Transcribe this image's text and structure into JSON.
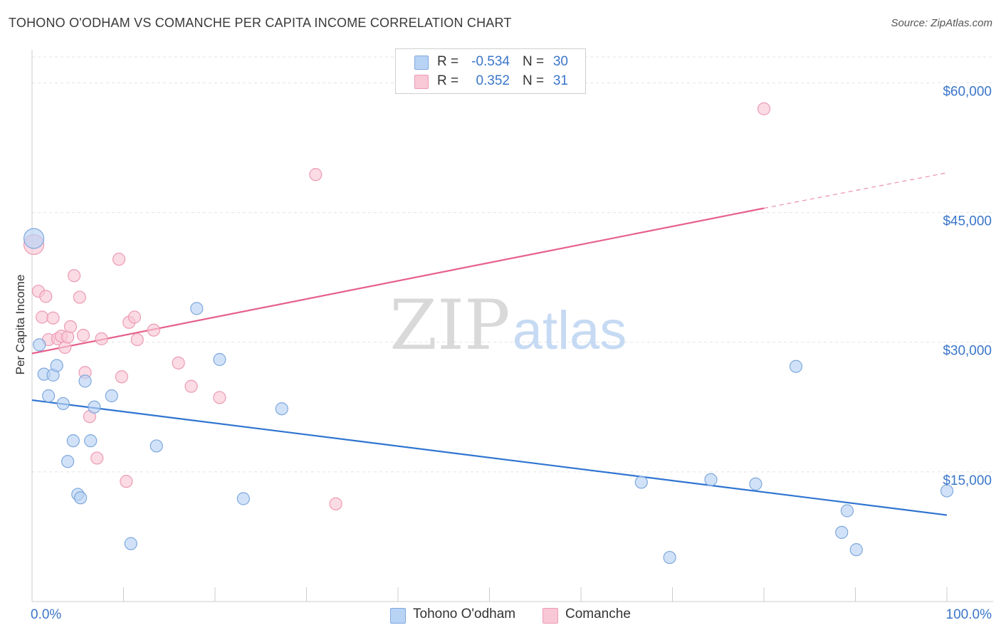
{
  "header": {
    "title": "TOHONO O'ODHAM VS COMANCHE PER CAPITA INCOME CORRELATION CHART",
    "source": "Source: ZipAtlas.com"
  },
  "watermark": {
    "zip": "ZIP",
    "atlas": "atlas"
  },
  "legend": {
    "rows": [
      {
        "r_label": "R =",
        "r_value": "-0.534",
        "n_label": "N =",
        "n_value": "30"
      },
      {
        "r_label": "R =",
        "r_value": "0.352",
        "n_label": "N =",
        "n_value": "31"
      }
    ]
  },
  "bottom_legend": [
    {
      "label": "Tohono O'odham"
    },
    {
      "label": "Comanche"
    }
  ],
  "colors": {
    "blue_fill": "#b9d3f5",
    "blue_stroke": "#7ea8dd",
    "blue_line": "#2f74d0",
    "pink_fill": "#f9c8d6",
    "pink_stroke": "#ec9bb4",
    "pink_line": "#e6608a",
    "axis_label": "#3a76c9",
    "grid": "#e3e3e3"
  },
  "chart_data": {
    "type": "scatter",
    "title": "TOHONO O'ODHAM VS COMANCHE PER CAPITA INCOME CORRELATION CHART",
    "xlabel": "",
    "ylabel": "Per Capita Income",
    "xlim": [
      0,
      100
    ],
    "ylim": [
      0,
      63000
    ],
    "x_tick_labels": [
      "0.0%",
      "100.0%"
    ],
    "y_ticks": [
      15000,
      30000,
      45000,
      60000
    ],
    "y_tick_labels": [
      "$15,000",
      "$30,000",
      "$45,000",
      "$60,000"
    ],
    "grid": true,
    "legend_position": "top-center",
    "series": [
      {
        "name": "Tohono O'odham",
        "color": "#7ea8dd",
        "r": -0.534,
        "n": 30,
        "trend": {
          "x": [
            0,
            100
          ],
          "y": [
            23300,
            10000
          ]
        },
        "points": [
          {
            "x": 0.2,
            "y": 42000,
            "big": true
          },
          {
            "x": 0.8,
            "y": 29700
          },
          {
            "x": 1.3,
            "y": 26300
          },
          {
            "x": 1.8,
            "y": 23800
          },
          {
            "x": 2.3,
            "y": 26200
          },
          {
            "x": 2.7,
            "y": 27300
          },
          {
            "x": 3.4,
            "y": 22900
          },
          {
            "x": 3.9,
            "y": 16200
          },
          {
            "x": 4.5,
            "y": 18600
          },
          {
            "x": 5.0,
            "y": 12400
          },
          {
            "x": 5.3,
            "y": 12000
          },
          {
            "x": 5.8,
            "y": 25500
          },
          {
            "x": 6.4,
            "y": 18600
          },
          {
            "x": 6.8,
            "y": 22500
          },
          {
            "x": 8.7,
            "y": 23800
          },
          {
            "x": 10.8,
            "y": 6700
          },
          {
            "x": 13.6,
            "y": 18000
          },
          {
            "x": 18.0,
            "y": 33900
          },
          {
            "x": 20.5,
            "y": 28000
          },
          {
            "x": 23.1,
            "y": 11900
          },
          {
            "x": 27.3,
            "y": 22300
          },
          {
            "x": 66.6,
            "y": 13800
          },
          {
            "x": 69.7,
            "y": 5100
          },
          {
            "x": 74.2,
            "y": 14100
          },
          {
            "x": 79.1,
            "y": 13600
          },
          {
            "x": 83.5,
            "y": 27200
          },
          {
            "x": 88.5,
            "y": 8000
          },
          {
            "x": 89.1,
            "y": 10500
          },
          {
            "x": 90.1,
            "y": 6000
          },
          {
            "x": 100.0,
            "y": 12800
          }
        ]
      },
      {
        "name": "Comanche",
        "color": "#ec9bb4",
        "r": 0.352,
        "n": 31,
        "trend": {
          "x": [
            0,
            80
          ],
          "y": [
            28700,
            45500
          ]
        },
        "trend_dashed": {
          "x": [
            80,
            100
          ],
          "y": [
            45500,
            49600
          ]
        },
        "points": [
          {
            "x": 0.2,
            "y": 41300,
            "big": true
          },
          {
            "x": 0.7,
            "y": 35900
          },
          {
            "x": 1.1,
            "y": 32900
          },
          {
            "x": 1.5,
            "y": 35300
          },
          {
            "x": 1.8,
            "y": 30300
          },
          {
            "x": 2.3,
            "y": 32800
          },
          {
            "x": 2.8,
            "y": 30400
          },
          {
            "x": 3.2,
            "y": 30700
          },
          {
            "x": 3.6,
            "y": 29400
          },
          {
            "x": 3.9,
            "y": 30600
          },
          {
            "x": 4.2,
            "y": 31800
          },
          {
            "x": 4.6,
            "y": 37700
          },
          {
            "x": 5.2,
            "y": 35200
          },
          {
            "x": 5.6,
            "y": 30800
          },
          {
            "x": 5.8,
            "y": 26500
          },
          {
            "x": 6.3,
            "y": 21400
          },
          {
            "x": 7.1,
            "y": 16600
          },
          {
            "x": 7.6,
            "y": 30400
          },
          {
            "x": 9.5,
            "y": 39600
          },
          {
            "x": 9.8,
            "y": 26000
          },
          {
            "x": 10.3,
            "y": 13900
          },
          {
            "x": 10.6,
            "y": 32300
          },
          {
            "x": 11.2,
            "y": 32900
          },
          {
            "x": 11.5,
            "y": 30300
          },
          {
            "x": 13.3,
            "y": 31400
          },
          {
            "x": 16.0,
            "y": 27600
          },
          {
            "x": 17.4,
            "y": 24900
          },
          {
            "x": 20.5,
            "y": 23600
          },
          {
            "x": 31.0,
            "y": 49400
          },
          {
            "x": 33.2,
            "y": 11300
          },
          {
            "x": 80.0,
            "y": 57000
          }
        ]
      }
    ]
  }
}
